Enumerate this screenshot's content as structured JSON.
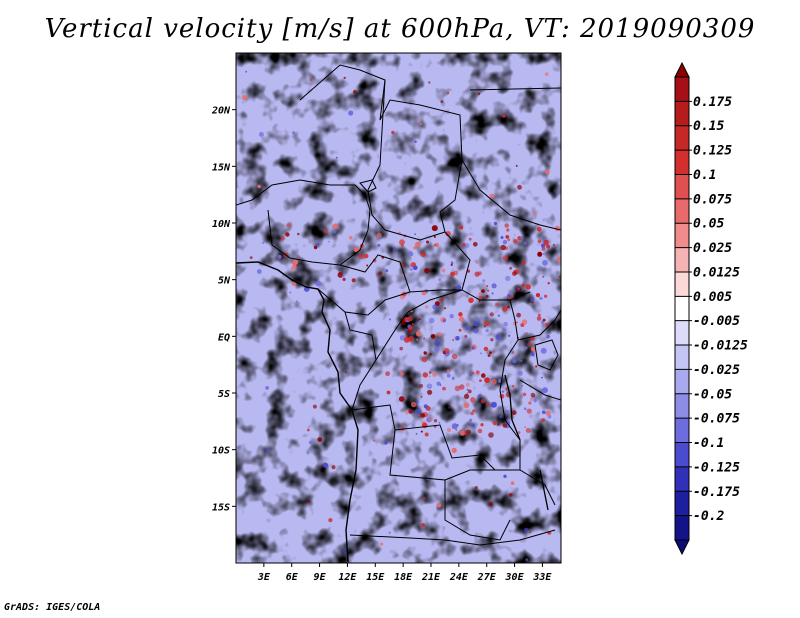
{
  "title": "Vertical velocity [m/s] at 600hPa, VT: 2019090309",
  "footer": "GrADS: IGES/COLA",
  "map": {
    "lon_range": [
      0,
      35
    ],
    "lat_range": [
      -20,
      25
    ],
    "lon_ticks": [
      "3E",
      "6E",
      "9E",
      "12E",
      "15E",
      "18E",
      "21E",
      "24E",
      "27E",
      "30E",
      "33E"
    ],
    "lon_values": [
      3,
      6,
      9,
      12,
      15,
      18,
      21,
      24,
      27,
      30,
      33
    ],
    "lat_ticks": [
      "20N",
      "15N",
      "10N",
      "5N",
      "EQ",
      "5S",
      "10S",
      "15S"
    ],
    "lat_values": [
      20,
      15,
      10,
      5,
      0,
      -5,
      -10,
      -15
    ]
  },
  "colorbar": {
    "labels": [
      "0.175",
      "0.15",
      "0.125",
      "0.1",
      "0.075",
      "0.05",
      "0.025",
      "0.0125",
      "0.005",
      "-0.005",
      "-0.0125",
      "-0.025",
      "-0.05",
      "-0.075",
      "-0.1",
      "-0.125",
      "-0.175",
      "-0.2"
    ],
    "colors": [
      "#a50f15",
      "#b71c1c",
      "#c62828",
      "#d32f2f",
      "#e05050",
      "#e86a6a",
      "#f08c8c",
      "#f6b3b3",
      "#fbd9d9",
      "#ffffff",
      "#dcdcfa",
      "#c4c4f5",
      "#a9a9ef",
      "#8d8de8",
      "#6d6de0",
      "#4b4bd0",
      "#3030b8",
      "#1e1ea0",
      "#14148a"
    ],
    "top_arrow_color": "#8b0000",
    "bottom_arrow_color": "#0c0c78"
  }
}
